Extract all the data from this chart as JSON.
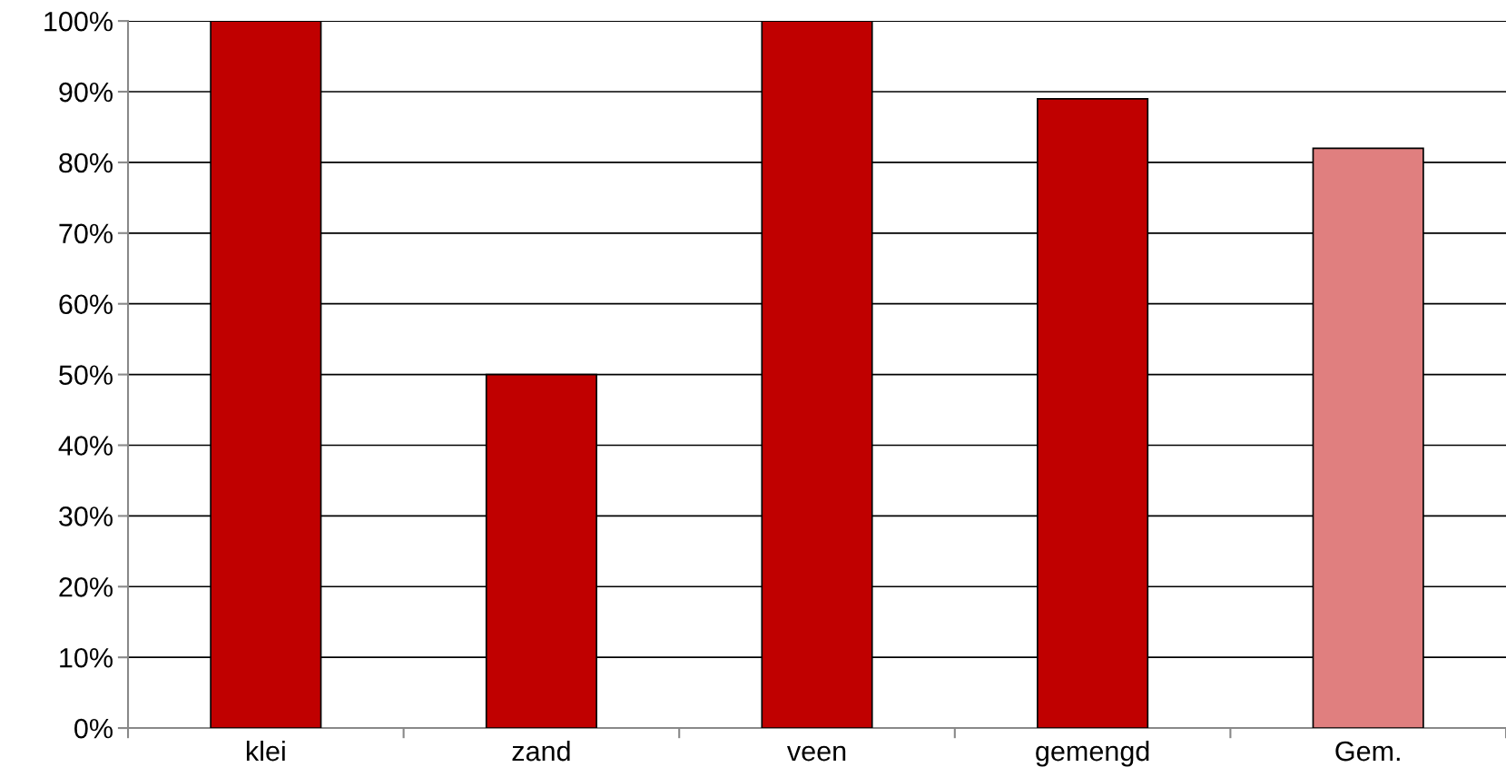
{
  "chart_data": {
    "type": "bar",
    "categories": [
      "klei",
      "zand",
      "veen",
      "gemengd",
      "Gem."
    ],
    "values": [
      100,
      50,
      100,
      89,
      82
    ],
    "colors": [
      "#c00000",
      "#c00000",
      "#c00000",
      "#c00000",
      "#e07f7f"
    ],
    "ylim": [
      0,
      100
    ],
    "yticks": [
      {
        "value": 0,
        "label": "0%"
      },
      {
        "value": 10,
        "label": "10%"
      },
      {
        "value": 20,
        "label": "20%"
      },
      {
        "value": 30,
        "label": "30%"
      },
      {
        "value": 40,
        "label": "40%"
      },
      {
        "value": 50,
        "label": "50%"
      },
      {
        "value": 60,
        "label": "60%"
      },
      {
        "value": 70,
        "label": "70%"
      },
      {
        "value": 80,
        "label": "80%"
      },
      {
        "value": 90,
        "label": "90%"
      },
      {
        "value": 100,
        "label": "100%"
      }
    ],
    "grid": "y"
  }
}
